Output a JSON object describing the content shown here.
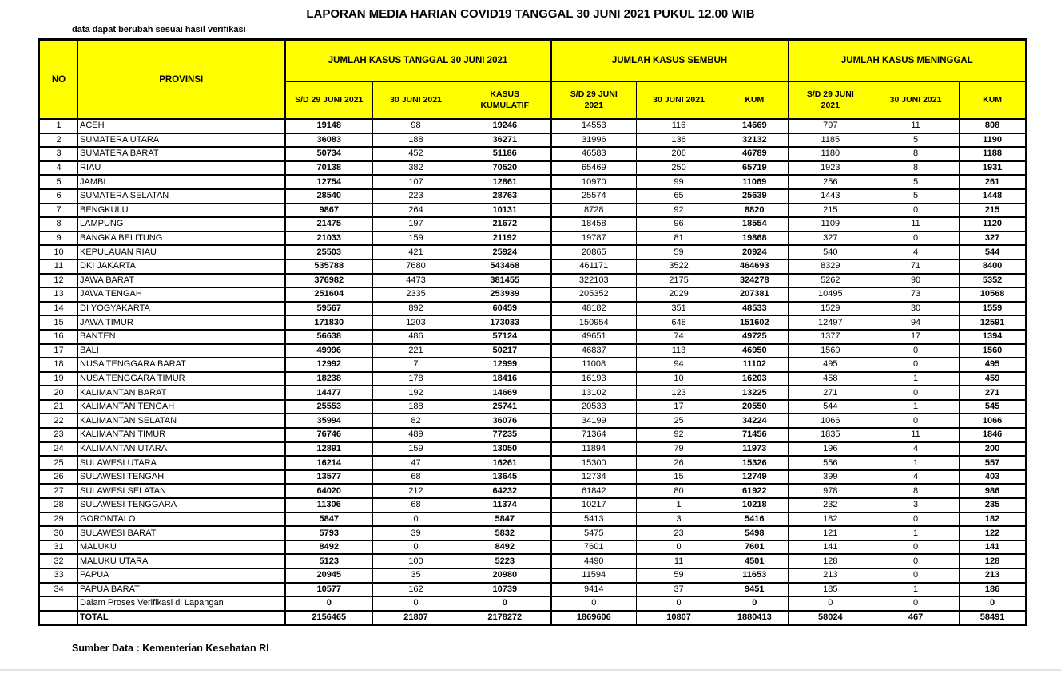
{
  "title": "LAPORAN MEDIA HARIAN COVID19 TANGGAL 30 JUNI 2021 PUKUL 12.00 WIB",
  "note": "data dapat berubah sesuai hasil verifikasi",
  "source": "Sumber Data : Kementerian Kesehatan RI",
  "colors": {
    "header_bg": "#FFFF00",
    "border": "#000000",
    "text": "#000000"
  },
  "table": {
    "headers": {
      "no": "NO",
      "province": "PROVINSI",
      "groups": [
        "JUMLAH KASUS TANGGAL 30 JUNI 2021",
        "JUMLAH KASUS SEMBUH",
        "JUMLAH KASUS MENINGGAL"
      ],
      "sub": [
        "S/D 29 JUNI 2021",
        "30 JUNI 2021",
        "KASUS\nKUMULATIF",
        "S/D 29 JUNI\n2021",
        "30 JUNI 2021",
        "KUM",
        "S/D 29 JUNI\n2021",
        "30 JUNI 2021",
        "KUM"
      ]
    },
    "rows": [
      {
        "no": "1",
        "province": "ACEH",
        "values": [
          "19148",
          "98",
          "19246",
          "14553",
          "116",
          "14669",
          "797",
          "11",
          "808"
        ]
      },
      {
        "no": "2",
        "province": "SUMATERA UTARA",
        "values": [
          "36083",
          "188",
          "36271",
          "31996",
          "136",
          "32132",
          "1185",
          "5",
          "1190"
        ]
      },
      {
        "no": "3",
        "province": "SUMATERA BARAT",
        "values": [
          "50734",
          "452",
          "51186",
          "46583",
          "206",
          "46789",
          "1180",
          "8",
          "1188"
        ]
      },
      {
        "no": "4",
        "province": "RIAU",
        "values": [
          "70138",
          "382",
          "70520",
          "65469",
          "250",
          "65719",
          "1923",
          "8",
          "1931"
        ]
      },
      {
        "no": "5",
        "province": "JAMBI",
        "values": [
          "12754",
          "107",
          "12861",
          "10970",
          "99",
          "11069",
          "256",
          "5",
          "261"
        ]
      },
      {
        "no": "6",
        "province": "SUMATERA SELATAN",
        "values": [
          "28540",
          "223",
          "28763",
          "25574",
          "65",
          "25639",
          "1443",
          "5",
          "1448"
        ]
      },
      {
        "no": "7",
        "province": "BENGKULU",
        "values": [
          "9867",
          "264",
          "10131",
          "8728",
          "92",
          "8820",
          "215",
          "0",
          "215"
        ]
      },
      {
        "no": "8",
        "province": "LAMPUNG",
        "values": [
          "21475",
          "197",
          "21672",
          "18458",
          "96",
          "18554",
          "1109",
          "11",
          "1120"
        ]
      },
      {
        "no": "9",
        "province": "BANGKA BELITUNG",
        "values": [
          "21033",
          "159",
          "21192",
          "19787",
          "81",
          "19868",
          "327",
          "0",
          "327"
        ]
      },
      {
        "no": "10",
        "province": "KEPULAUAN RIAU",
        "values": [
          "25503",
          "421",
          "25924",
          "20865",
          "59",
          "20924",
          "540",
          "4",
          "544"
        ]
      },
      {
        "no": "11",
        "province": "DKI JAKARTA",
        "values": [
          "535788",
          "7680",
          "543468",
          "461171",
          "3522",
          "464693",
          "8329",
          "71",
          "8400"
        ]
      },
      {
        "no": "12",
        "province": "JAWA BARAT",
        "values": [
          "376982",
          "4473",
          "381455",
          "322103",
          "2175",
          "324278",
          "5262",
          "90",
          "5352"
        ]
      },
      {
        "no": "13",
        "province": "JAWA TENGAH",
        "values": [
          "251604",
          "2335",
          "253939",
          "205352",
          "2029",
          "207381",
          "10495",
          "73",
          "10568"
        ]
      },
      {
        "no": "14",
        "province": "DI YOGYAKARTA",
        "values": [
          "59567",
          "892",
          "60459",
          "48182",
          "351",
          "48533",
          "1529",
          "30",
          "1559"
        ]
      },
      {
        "no": "15",
        "province": "JAWA TIMUR",
        "values": [
          "171830",
          "1203",
          "173033",
          "150954",
          "648",
          "151602",
          "12497",
          "94",
          "12591"
        ]
      },
      {
        "no": "16",
        "province": "BANTEN",
        "values": [
          "56638",
          "486",
          "57124",
          "49651",
          "74",
          "49725",
          "1377",
          "17",
          "1394"
        ]
      },
      {
        "no": "17",
        "province": "BALI",
        "values": [
          "49996",
          "221",
          "50217",
          "46837",
          "113",
          "46950",
          "1560",
          "0",
          "1560"
        ]
      },
      {
        "no": "18",
        "province": "NUSA TENGGARA BARAT",
        "values": [
          "12992",
          "7",
          "12999",
          "11008",
          "94",
          "11102",
          "495",
          "0",
          "495"
        ]
      },
      {
        "no": "19",
        "province": "NUSA TENGGARA TIMUR",
        "values": [
          "18238",
          "178",
          "18416",
          "16193",
          "10",
          "16203",
          "458",
          "1",
          "459"
        ]
      },
      {
        "no": "20",
        "province": "KALIMANTAN BARAT",
        "values": [
          "14477",
          "192",
          "14669",
          "13102",
          "123",
          "13225",
          "271",
          "0",
          "271"
        ]
      },
      {
        "no": "21",
        "province": "KALIMANTAN TENGAH",
        "values": [
          "25553",
          "188",
          "25741",
          "20533",
          "17",
          "20550",
          "544",
          "1",
          "545"
        ]
      },
      {
        "no": "22",
        "province": "KALIMANTAN SELATAN",
        "values": [
          "35994",
          "82",
          "36076",
          "34199",
          "25",
          "34224",
          "1066",
          "0",
          "1066"
        ]
      },
      {
        "no": "23",
        "province": "KALIMANTAN TIMUR",
        "values": [
          "76746",
          "489",
          "77235",
          "71364",
          "92",
          "71456",
          "1835",
          "11",
          "1846"
        ]
      },
      {
        "no": "24",
        "province": "KALIMANTAN UTARA",
        "values": [
          "12891",
          "159",
          "13050",
          "11894",
          "79",
          "11973",
          "196",
          "4",
          "200"
        ]
      },
      {
        "no": "25",
        "province": "SULAWESI UTARA",
        "values": [
          "16214",
          "47",
          "16261",
          "15300",
          "26",
          "15326",
          "556",
          "1",
          "557"
        ]
      },
      {
        "no": "26",
        "province": "SULAWESI TENGAH",
        "values": [
          "13577",
          "68",
          "13645",
          "12734",
          "15",
          "12749",
          "399",
          "4",
          "403"
        ]
      },
      {
        "no": "27",
        "province": "SULAWESI SELATAN",
        "values": [
          "64020",
          "212",
          "64232",
          "61842",
          "80",
          "61922",
          "978",
          "8",
          "986"
        ]
      },
      {
        "no": "28",
        "province": "SULAWESI TENGGARA",
        "values": [
          "11306",
          "68",
          "11374",
          "10217",
          "1",
          "10218",
          "232",
          "3",
          "235"
        ]
      },
      {
        "no": "29",
        "province": "GORONTALO",
        "values": [
          "5847",
          "0",
          "5847",
          "5413",
          "3",
          "5416",
          "182",
          "0",
          "182"
        ]
      },
      {
        "no": "30",
        "province": "SULAWESI BARAT",
        "values": [
          "5793",
          "39",
          "5832",
          "5475",
          "23",
          "5498",
          "121",
          "1",
          "122"
        ]
      },
      {
        "no": "31",
        "province": "MALUKU",
        "values": [
          "8492",
          "0",
          "8492",
          "7601",
          "0",
          "7601",
          "141",
          "0",
          "141"
        ]
      },
      {
        "no": "32",
        "province": "MALUKU UTARA",
        "values": [
          "5123",
          "100",
          "5223",
          "4490",
          "11",
          "4501",
          "128",
          "0",
          "128"
        ]
      },
      {
        "no": "33",
        "province": "PAPUA",
        "values": [
          "20945",
          "35",
          "20980",
          "11594",
          "59",
          "11653",
          "213",
          "0",
          "213"
        ]
      },
      {
        "no": "34",
        "province": "PAPUA BARAT",
        "values": [
          "10577",
          "162",
          "10739",
          "9414",
          "37",
          "9451",
          "185",
          "1",
          "186"
        ]
      },
      {
        "no": "",
        "province": "Dalam Proses Verifikasi di Lapangan",
        "values": [
          "0",
          "0",
          "0",
          "0",
          "0",
          "0",
          "0",
          "0",
          "0"
        ]
      }
    ],
    "total": {
      "label": "TOTAL",
      "values": [
        "2156465",
        "21807",
        "2178272",
        "1869606",
        "10807",
        "1880413",
        "58024",
        "467",
        "58491"
      ]
    }
  }
}
